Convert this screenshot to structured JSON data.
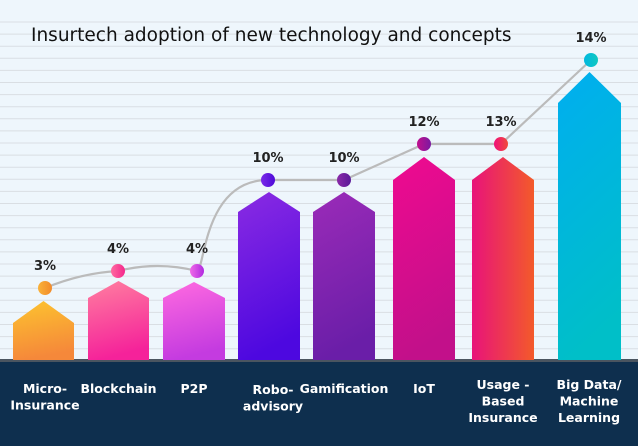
{
  "chart_data": {
    "type": "bar",
    "title": "Insurtech adoption of new technology and concepts",
    "categories": [
      [
        "Micro-",
        "Insurance"
      ],
      [
        "Blockchain"
      ],
      [
        "P2P"
      ],
      [
        "Robo-",
        "advisory"
      ],
      [
        "Gamification"
      ],
      [
        "IoT"
      ],
      [
        "Usage -",
        "Based",
        "Insurance"
      ],
      [
        "Big Data/",
        "Machine",
        "Learning"
      ]
    ],
    "values": [
      3,
      4,
      4,
      10,
      10,
      12,
      13,
      14
    ],
    "value_labels": [
      "3%",
      "4%",
      "4%",
      "10%",
      "10%",
      "12%",
      "13%",
      "14%"
    ],
    "overlay_line": true,
    "grid": true,
    "colors": {
      "background": "#eef6fc",
      "axis_band": "#0e2f4e",
      "line": "#bbbbbb",
      "bars": [
        [
          "#fdc42f",
          "#f5883a"
        ],
        [
          "#ff7fa0",
          "#f5229a"
        ],
        [
          "#ff6ae0",
          "#c43be0"
        ],
        [
          "#8a2be2",
          "#4d08e0"
        ],
        [
          "#9b2bb8",
          "#6a1ea8"
        ],
        [
          "#ef0a90",
          "#c2108a"
        ],
        [
          "#e8137a",
          "#f35a2a"
        ],
        [
          "#00aef0",
          "#00bfc8"
        ]
      ],
      "dots": [
        [
          "#f9b23a",
          "#f28a2a"
        ],
        [
          "#ff6aa0",
          "#f4288c"
        ],
        [
          "#f06ae8",
          "#b02ae0"
        ],
        [
          "#7a2ae8",
          "#4e0ad8"
        ],
        [
          "#8a2aa8",
          "#5a1a98"
        ],
        [
          "#c0108e",
          "#7a1aa0"
        ],
        [
          "#f0107a",
          "#f04a3a"
        ],
        [
          "#00b8e0",
          "#10c8c0"
        ]
      ]
    }
  }
}
